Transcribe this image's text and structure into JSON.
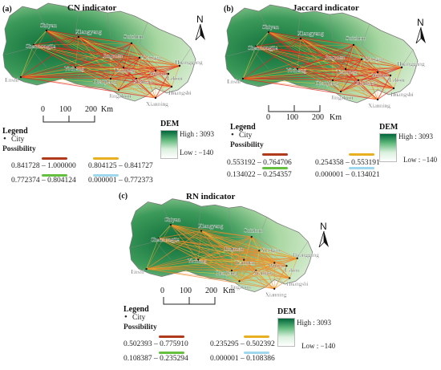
{
  "panels": [
    {
      "tag": "(a)",
      "title": "CN indicator",
      "cities": [
        "Shiyan",
        "Xiangyang",
        "Suizhou",
        "Shennongjia",
        "Jingmen",
        "Xiaogan",
        "Enshi",
        "Yichang",
        "Huanggang",
        "Tianmen",
        "Wuhan",
        "Ezhou",
        "Qianjiang",
        "Xiantao",
        "Huangshi",
        "Jingzhou",
        "Xianning"
      ],
      "scale": {
        "ticks": [
          "0",
          "100",
          "200"
        ],
        "unit": "Km"
      },
      "legend": {
        "heading": "Legend",
        "city": "City",
        "possibility": "Possibility",
        "ranges": [
          "0.841728 – 1.000000",
          "0.804125 – 0.841727",
          "0.772374 – 0.804124",
          "0.000001 – 0.772373"
        ],
        "colors": [
          "#b03a1c",
          "#e8b020",
          "#66c040",
          "#9ed8ee"
        ]
      },
      "dem": {
        "title": "DEM",
        "high": "High : 3093",
        "low": "Low : −140"
      }
    },
    {
      "tag": "(b)",
      "title": "Jaccard indicator",
      "cities": [
        "Shiyan",
        "Xiangyang",
        "Suizhou",
        "Shennongjia",
        "Jingmen",
        "Xiaogan",
        "Enshi",
        "Yichang",
        "Huanggang",
        "Tianmen",
        "Wuhan",
        "Ezhou",
        "Qianjiang",
        "Xiantao",
        "Huangshi",
        "Jingzhou",
        "Xianning"
      ],
      "scale": {
        "ticks": [
          "0",
          "100",
          "200"
        ],
        "unit": "Km"
      },
      "legend": {
        "heading": "Legend",
        "city": "City",
        "possibility": "Possibility",
        "ranges": [
          "0.553192 – 0.764706",
          "0.254358 – 0.553191",
          "0.134022 – 0.254357",
          "0.000001 – 0.134021"
        ],
        "colors": [
          "#b03a1c",
          "#e8b020",
          "#66c040",
          "#9ed8ee"
        ]
      },
      "dem": {
        "title": "DEM",
        "high": "High : 3093",
        "low": "Low : −140"
      }
    },
    {
      "tag": "(c)",
      "title": "RN indicator",
      "cities": [
        "Shiyan",
        "Xiangyang",
        "Suizhou",
        "Shennongjia",
        "Jingmen",
        "Xiaogan",
        "Enshi",
        "Yichang",
        "Huanggang",
        "Tianmen",
        "Wuhan",
        "Ezhou",
        "Qianjiang",
        "Xiantao",
        "Huangshi",
        "Jingzhou",
        "Xianning"
      ],
      "scale": {
        "ticks": [
          "0",
          "100",
          "200"
        ],
        "unit": "Km"
      },
      "legend": {
        "heading": "Legend",
        "city": "City",
        "possibility": "Possibility",
        "ranges": [
          "0.502393 – 0.775910",
          "0.235295 – 0.502392",
          "0.108387 – 0.235294",
          "0.000001 – 0.108386"
        ],
        "colors": [
          "#b03a1c",
          "#e8b020",
          "#66c040",
          "#9ed8ee"
        ]
      },
      "dem": {
        "title": "DEM",
        "high": "High : 3093",
        "low": "Low : −140"
      }
    }
  ],
  "north_label": "N",
  "colors": {
    "land_light": "#d6ecd0",
    "land_dark": "#0f6e3a",
    "link_strong": "#e8261c",
    "link_mid": "#f08a2a",
    "link_weak": "#f2d03a"
  }
}
